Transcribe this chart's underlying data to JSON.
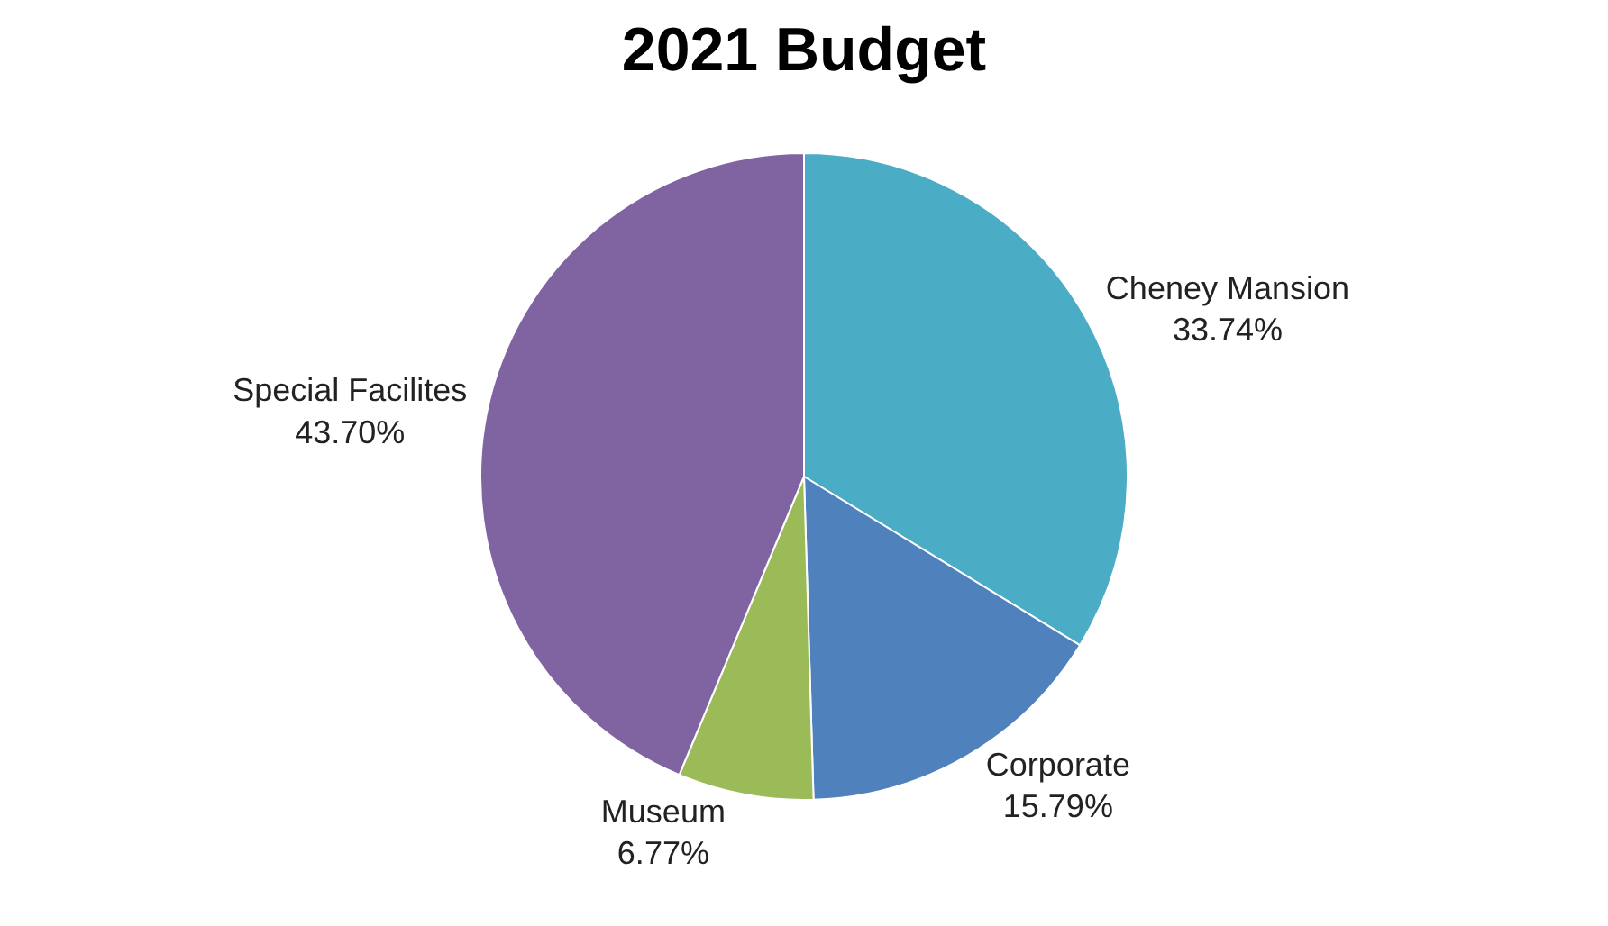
{
  "chart_data": {
    "type": "pie",
    "title": "2021 Budget",
    "categories": [
      "Cheney Mansion",
      "Corporate",
      "Museum",
      "Special Facilites"
    ],
    "values": [
      33.74,
      15.79,
      6.77,
      43.7
    ],
    "value_labels": [
      "33.74%",
      "15.79%",
      "6.77%",
      "43.70%"
    ],
    "colors": [
      "#4bacc6",
      "#4f81bd",
      "#9bbb59",
      "#8064a2"
    ],
    "legend": false
  }
}
